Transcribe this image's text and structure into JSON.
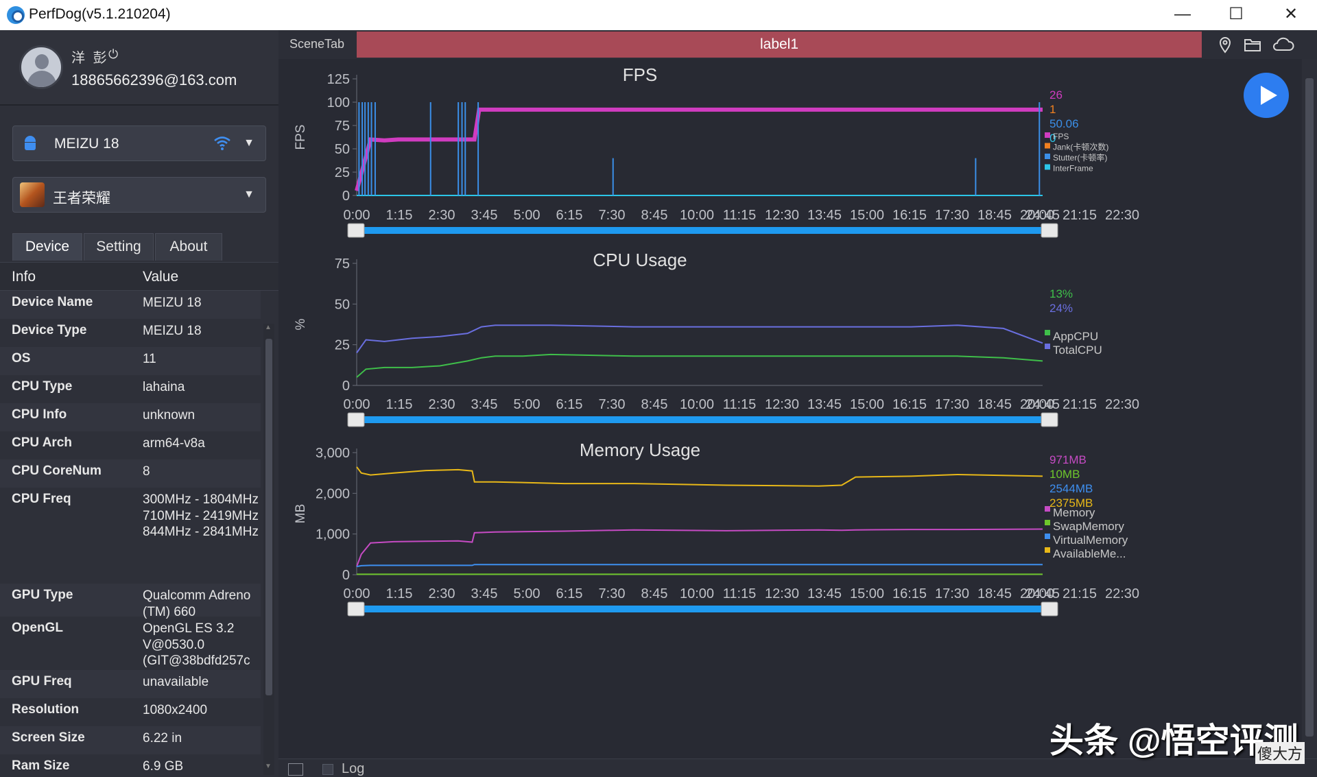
{
  "window": {
    "title": "PerfDog(v5.1.210204)",
    "minimize": "—",
    "maximize": "☐",
    "close": "✕"
  },
  "user": {
    "name": "洋 彭",
    "power_icon": "⏻",
    "email": "18865662396@163.com"
  },
  "device_select": {
    "label": "MEIZU 18",
    "icon": "android-icon"
  },
  "app_select": {
    "label": "王者荣耀",
    "icon": "game-icon"
  },
  "tabs": [
    {
      "label": "Device",
      "active": true
    },
    {
      "label": "Setting",
      "active": false
    },
    {
      "label": "About",
      "active": false
    }
  ],
  "info_table": {
    "headers": [
      "Info",
      "Value"
    ],
    "rows": [
      {
        "key": "Device Name",
        "value": "MEIZU 18"
      },
      {
        "key": "Device Type",
        "value": "MEIZU 18"
      },
      {
        "key": "OS",
        "value": "11"
      },
      {
        "key": "CPU Type",
        "value": "lahaina"
      },
      {
        "key": "CPU Info",
        "value": "unknown"
      },
      {
        "key": "CPU Arch",
        "value": "arm64-v8a"
      },
      {
        "key": "CPU CoreNum",
        "value": "8"
      },
      {
        "key": "CPU Freq",
        "value": "300MHz - 1804MHz 710MHz - 2419MHz 844MHz - 2841MHz"
      },
      {
        "key": "GPU Type",
        "value": "Qualcomm Adreno (TM) 660"
      },
      {
        "key": "OpenGL",
        "value": "OpenGL ES 3.2 V@0530.0 (GIT@38bdfd257c"
      },
      {
        "key": "GPU Freq",
        "value": "unavailable"
      },
      {
        "key": "Resolution",
        "value": "1080x2400"
      },
      {
        "key": "Screen Size",
        "value": "6.22 in"
      },
      {
        "key": "Ram Size",
        "value": "6.9 GB"
      }
    ]
  },
  "scene": {
    "tab_label": "SceneTab",
    "label": "label1"
  },
  "top_icons": [
    "location-icon",
    "folder-icon",
    "cloud-icon"
  ],
  "bottom": {
    "log_label": "Log"
  },
  "watermark": {
    "text": "头条 @悟空评测",
    "corner": "傻大方"
  },
  "colors": {
    "fps": "#d03cc0",
    "jank": "#f08020",
    "stutter": "#3b8fe8",
    "interframe": "#2cc6e8",
    "appcpu": "#3fbf4a",
    "totalcpu": "#6a6fe0",
    "memory": "#c64bc4",
    "swap": "#6ec62c",
    "virtual": "#3e8ff0",
    "available": "#e8b818",
    "slider": "#1e9af0",
    "label_bar": "#a84a57"
  },
  "chart_data": [
    {
      "type": "line",
      "title": "FPS",
      "ylabel": "FPS",
      "ylim": [
        0,
        125
      ],
      "yticks": [
        0,
        25,
        50,
        75,
        100,
        125
      ],
      "xticks": [
        "0:00",
        "1:15",
        "2:30",
        "3:45",
        "5:00",
        "6:15",
        "7:30",
        "8:45",
        "10:00",
        "11:15",
        "12:30",
        "13:45",
        "15:00",
        "16:15",
        "17:30",
        "18:45",
        "20:00",
        "21:15",
        "22:30",
        "24:45"
      ],
      "x_unit": "mm:ss",
      "x": [
        0,
        30,
        60,
        90,
        120,
        180,
        240,
        255,
        265,
        300,
        600,
        900,
        1200,
        1485
      ],
      "series": [
        {
          "name": "FPS",
          "values": [
            5,
            60,
            59,
            60,
            60,
            60,
            60,
            60,
            92,
            92,
            92,
            92,
            92,
            92
          ],
          "current": "26"
        },
        {
          "name": "Jank(卡顿次数)",
          "values": [
            0,
            0,
            0,
            0,
            0,
            0,
            0,
            0,
            0,
            0,
            0,
            0,
            0,
            0
          ],
          "current": "1"
        },
        {
          "name": "Stutter(卡顿率)",
          "values": [
            0,
            0,
            0,
            0,
            0,
            0,
            0,
            0,
            0,
            0,
            0,
            0,
            0,
            0
          ],
          "current": "50.06"
        },
        {
          "name": "InterFrame",
          "values": [
            0,
            0,
            0,
            0,
            0,
            0,
            0,
            0,
            0,
            0,
            0,
            0,
            0,
            0
          ],
          "current": "0"
        }
      ],
      "spikes": [
        {
          "x": 5,
          "value": 100
        },
        {
          "x": 12,
          "value": 100
        },
        {
          "x": 18,
          "value": 100
        },
        {
          "x": 25,
          "value": 100
        },
        {
          "x": 32,
          "value": 100
        },
        {
          "x": 40,
          "value": 100
        },
        {
          "x": 160,
          "value": 100
        },
        {
          "x": 220,
          "value": 100
        },
        {
          "x": 228,
          "value": 100
        },
        {
          "x": 235,
          "value": 100
        },
        {
          "x": 263,
          "value": 100
        },
        {
          "x": 555,
          "value": 40
        },
        {
          "x": 1340,
          "value": 40
        },
        {
          "x": 1478,
          "value": 100
        }
      ],
      "legend_position": "right"
    },
    {
      "type": "line",
      "title": "CPU Usage",
      "ylabel": "%",
      "ylim": [
        0,
        75
      ],
      "yticks": [
        0,
        25,
        50,
        75
      ],
      "xticks": [
        "0:00",
        "1:15",
        "2:30",
        "3:45",
        "5:00",
        "6:15",
        "7:30",
        "8:45",
        "10:00",
        "11:15",
        "12:30",
        "13:45",
        "15:00",
        "16:15",
        "17:30",
        "18:45",
        "20:00",
        "21:15",
        "22:30",
        "24:45"
      ],
      "x_unit": "mm:ss",
      "x": [
        0,
        20,
        60,
        120,
        180,
        240,
        270,
        300,
        360,
        420,
        600,
        800,
        1000,
        1200,
        1300,
        1400,
        1485
      ],
      "series": [
        {
          "name": "AppCPU",
          "values": [
            5,
            10,
            11,
            11,
            12,
            15,
            17,
            18,
            18,
            19,
            18,
            18,
            18,
            18,
            18,
            17,
            15
          ],
          "current": "13%"
        },
        {
          "name": "TotalCPU",
          "values": [
            20,
            28,
            27,
            29,
            30,
            32,
            36,
            37,
            37,
            37,
            36,
            36,
            36,
            36,
            37,
            35,
            26
          ],
          "current": "24%"
        }
      ],
      "legend_position": "right"
    },
    {
      "type": "line",
      "title": "Memory Usage",
      "ylabel": "MB",
      "ylim": [
        0,
        3000
      ],
      "yticks": [
        0,
        1000,
        2000,
        3000
      ],
      "xticks": [
        "0:00",
        "1:15",
        "2:30",
        "3:45",
        "5:00",
        "6:15",
        "7:30",
        "8:45",
        "10:00",
        "11:15",
        "12:30",
        "13:45",
        "15:00",
        "16:15",
        "17:30",
        "18:45",
        "20:00",
        "21:15",
        "22:30",
        "24:45"
      ],
      "x_unit": "mm:ss",
      "x": [
        0,
        10,
        30,
        80,
        150,
        220,
        250,
        255,
        300,
        450,
        600,
        800,
        1000,
        1050,
        1080,
        1200,
        1300,
        1485
      ],
      "series": [
        {
          "name": "Memory",
          "values": [
            200,
            500,
            780,
            810,
            820,
            830,
            800,
            1030,
            1050,
            1070,
            1100,
            1080,
            1100,
            1090,
            1100,
            1110,
            1110,
            1120
          ],
          "current": "971MB"
        },
        {
          "name": "SwapMemory",
          "values": [
            10,
            10,
            10,
            10,
            10,
            10,
            10,
            10,
            10,
            10,
            10,
            10,
            10,
            10,
            10,
            10,
            10,
            10
          ],
          "current": "10MB"
        },
        {
          "name": "VirtualMemory",
          "values": [
            200,
            220,
            230,
            230,
            230,
            230,
            230,
            250,
            250,
            250,
            250,
            250,
            250,
            250,
            250,
            250,
            250,
            250
          ],
          "current": "2544MB"
        },
        {
          "name": "AvailableMe...",
          "values": [
            2650,
            2500,
            2450,
            2500,
            2560,
            2580,
            2550,
            2280,
            2280,
            2240,
            2240,
            2200,
            2180,
            2200,
            2400,
            2420,
            2460,
            2420
          ],
          "current": "2375MB"
        }
      ],
      "legend_position": "right"
    }
  ]
}
